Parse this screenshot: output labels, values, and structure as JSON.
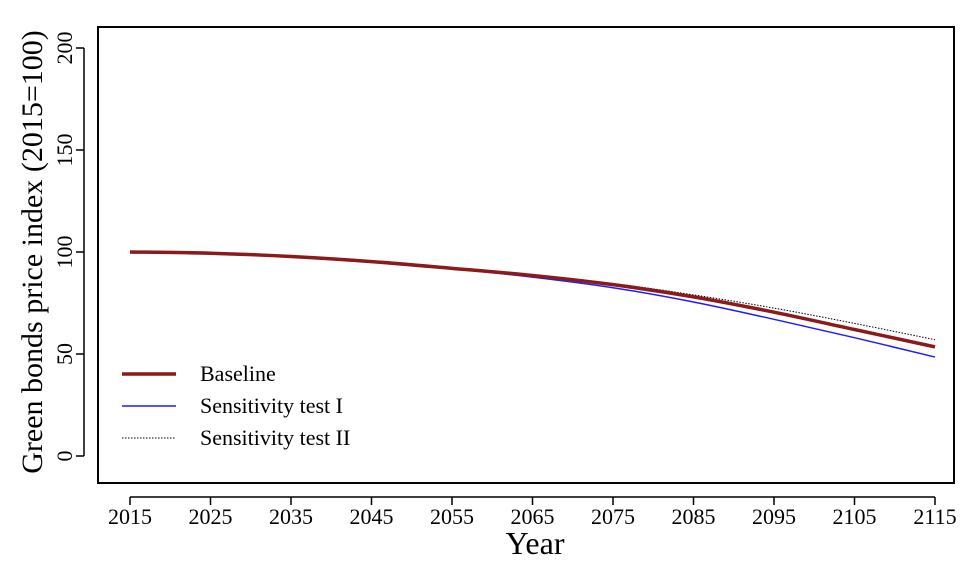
{
  "chart_data": {
    "type": "line",
    "title": "",
    "xlabel": "Year",
    "ylabel": "Green bonds price index (2015=100)",
    "xlim": [
      2015,
      2115
    ],
    "ylim": [
      0,
      200
    ],
    "x_ticks": [
      2015,
      2025,
      2035,
      2045,
      2055,
      2065,
      2075,
      2085,
      2095,
      2105,
      2115
    ],
    "y_ticks": [
      0,
      50,
      100,
      150,
      200
    ],
    "grid": false,
    "legend_position": "bottom-left",
    "x": [
      2015,
      2025,
      2035,
      2045,
      2055,
      2065,
      2075,
      2085,
      2095,
      2105,
      2115
    ],
    "series": [
      {
        "name": "Baseline",
        "values": [
          100,
          99.4,
          97.8,
          95.3,
          92.0,
          88.5,
          84.0,
          78.0,
          70.5,
          62.0,
          53.5
        ],
        "color": "#8b1a1a",
        "style": "solid-thick"
      },
      {
        "name": "Sensitivity test I",
        "values": [
          100,
          99.3,
          97.6,
          95.1,
          91.8,
          87.7,
          82.5,
          75.5,
          67.0,
          58.0,
          48.5
        ],
        "color": "#1c1cff",
        "style": "solid-thin"
      },
      {
        "name": "Sensitivity test II",
        "values": [
          100,
          99.5,
          97.9,
          95.5,
          92.3,
          88.8,
          84.6,
          79.0,
          72.5,
          65.0,
          57.0
        ],
        "color": "#000000",
        "style": "dotted"
      }
    ]
  }
}
